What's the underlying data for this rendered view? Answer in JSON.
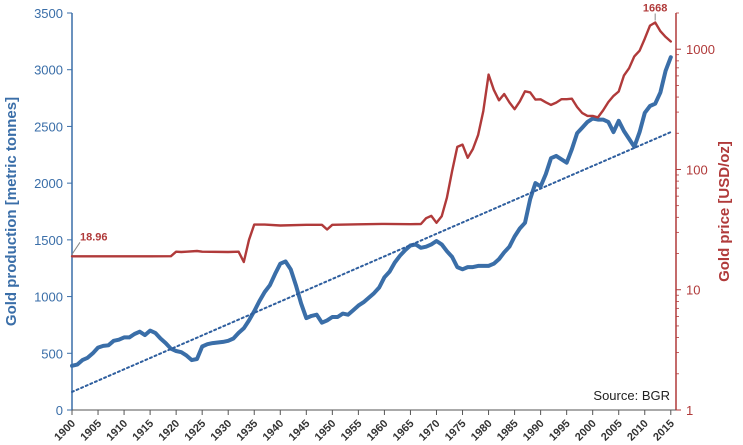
{
  "chart_data": {
    "type": "line",
    "source_label": "Source: BGR",
    "x_ticks": [
      1900,
      1905,
      1910,
      1915,
      1920,
      1925,
      1930,
      1935,
      1940,
      1945,
      1950,
      1955,
      1960,
      1965,
      1970,
      1975,
      1980,
      1985,
      1990,
      1995,
      2000,
      2005,
      2010,
      2015
    ],
    "xlim": [
      1900,
      2016
    ],
    "left_axis": {
      "label": "Gold production [metric tonnes]",
      "ticks": [
        0,
        500,
        1000,
        1500,
        2000,
        2500,
        3000,
        3500
      ],
      "ylim": [
        0,
        3500
      ],
      "color": "#3a6ea8"
    },
    "right_axis": {
      "label": "Gold price [USD/oz]",
      "scale": "log",
      "ticks": [
        1,
        10,
        100,
        1000
      ],
      "ylim": [
        1,
        2000
      ],
      "color": "#b03a3a"
    },
    "annotations": [
      {
        "text": "18.96",
        "x": 1900,
        "y": 18.96,
        "series": "price"
      },
      {
        "text": "1668",
        "x": 2012,
        "y": 1668,
        "series": "price"
      }
    ],
    "series": [
      {
        "axis": "left",
        "color": "#3a6ea8",
        "points": [
          [
            1900,
            390
          ],
          [
            1901,
            400
          ],
          [
            1902,
            440
          ],
          [
            1903,
            460
          ],
          [
            1904,
            500
          ],
          [
            1905,
            550
          ],
          [
            1906,
            565
          ],
          [
            1907,
            570
          ],
          [
            1908,
            610
          ],
          [
            1909,
            620
          ],
          [
            1910,
            640
          ],
          [
            1911,
            640
          ],
          [
            1912,
            670
          ],
          [
            1913,
            690
          ],
          [
            1914,
            660
          ],
          [
            1915,
            700
          ],
          [
            1916,
            680
          ],
          [
            1917,
            630
          ],
          [
            1918,
            590
          ],
          [
            1919,
            540
          ],
          [
            1920,
            520
          ],
          [
            1921,
            510
          ],
          [
            1922,
            480
          ],
          [
            1923,
            440
          ],
          [
            1924,
            450
          ],
          [
            1925,
            560
          ],
          [
            1926,
            580
          ],
          [
            1927,
            590
          ],
          [
            1928,
            595
          ],
          [
            1929,
            600
          ],
          [
            1930,
            610
          ],
          [
            1931,
            630
          ],
          [
            1932,
            680
          ],
          [
            1933,
            720
          ],
          [
            1934,
            790
          ],
          [
            1935,
            870
          ],
          [
            1936,
            960
          ],
          [
            1937,
            1040
          ],
          [
            1938,
            1100
          ],
          [
            1939,
            1200
          ],
          [
            1940,
            1290
          ],
          [
            1941,
            1310
          ],
          [
            1942,
            1240
          ],
          [
            1943,
            1100
          ],
          [
            1944,
            940
          ],
          [
            1945,
            810
          ],
          [
            1946,
            830
          ],
          [
            1947,
            840
          ],
          [
            1948,
            770
          ],
          [
            1949,
            790
          ],
          [
            1950,
            820
          ],
          [
            1951,
            820
          ],
          [
            1952,
            850
          ],
          [
            1953,
            840
          ],
          [
            1954,
            880
          ],
          [
            1955,
            920
          ],
          [
            1956,
            950
          ],
          [
            1957,
            990
          ],
          [
            1958,
            1030
          ],
          [
            1959,
            1080
          ],
          [
            1960,
            1170
          ],
          [
            1961,
            1220
          ],
          [
            1962,
            1300
          ],
          [
            1963,
            1360
          ],
          [
            1964,
            1410
          ],
          [
            1965,
            1450
          ],
          [
            1966,
            1460
          ],
          [
            1967,
            1430
          ],
          [
            1968,
            1440
          ],
          [
            1969,
            1460
          ],
          [
            1970,
            1490
          ],
          [
            1971,
            1460
          ],
          [
            1972,
            1400
          ],
          [
            1973,
            1350
          ],
          [
            1974,
            1260
          ],
          [
            1975,
            1240
          ],
          [
            1976,
            1260
          ],
          [
            1977,
            1260
          ],
          [
            1978,
            1270
          ],
          [
            1979,
            1270
          ],
          [
            1980,
            1270
          ],
          [
            1981,
            1290
          ],
          [
            1982,
            1330
          ],
          [
            1983,
            1390
          ],
          [
            1984,
            1440
          ],
          [
            1985,
            1530
          ],
          [
            1986,
            1600
          ],
          [
            1987,
            1650
          ],
          [
            1988,
            1860
          ],
          [
            1989,
            2000
          ],
          [
            1990,
            1970
          ],
          [
            1991,
            2080
          ],
          [
            1992,
            2220
          ],
          [
            1993,
            2240
          ],
          [
            1994,
            2210
          ],
          [
            1995,
            2180
          ],
          [
            1996,
            2300
          ],
          [
            1997,
            2440
          ],
          [
            1998,
            2490
          ],
          [
            1999,
            2540
          ],
          [
            2000,
            2570
          ],
          [
            2001,
            2560
          ],
          [
            2002,
            2560
          ],
          [
            2003,
            2540
          ],
          [
            2004,
            2450
          ],
          [
            2005,
            2550
          ],
          [
            2006,
            2460
          ],
          [
            2007,
            2390
          ],
          [
            2008,
            2320
          ],
          [
            2009,
            2450
          ],
          [
            2010,
            2620
          ],
          [
            2011,
            2680
          ],
          [
            2012,
            2700
          ],
          [
            2013,
            2800
          ],
          [
            2014,
            2990
          ],
          [
            2015,
            3110
          ]
        ]
      },
      {
        "axis": "right",
        "color": "#b03a3a",
        "points": [
          [
            1900,
            18.96
          ],
          [
            1902,
            18.96
          ],
          [
            1905,
            18.96
          ],
          [
            1910,
            18.96
          ],
          [
            1915,
            18.96
          ],
          [
            1919,
            19.0
          ],
          [
            1920,
            20.7
          ],
          [
            1921,
            20.6
          ],
          [
            1922,
            20.7
          ],
          [
            1924,
            21.0
          ],
          [
            1925,
            20.7
          ],
          [
            1930,
            20.6
          ],
          [
            1932,
            20.7
          ],
          [
            1933,
            17.0
          ],
          [
            1934,
            26.0
          ],
          [
            1935,
            34.8
          ],
          [
            1937,
            34.8
          ],
          [
            1940,
            34.2
          ],
          [
            1945,
            34.7
          ],
          [
            1947,
            34.7
          ],
          [
            1948,
            34.7
          ],
          [
            1949,
            31.7
          ],
          [
            1950,
            34.7
          ],
          [
            1955,
            35.0
          ],
          [
            1960,
            35.3
          ],
          [
            1965,
            35.1
          ],
          [
            1967,
            35.2
          ],
          [
            1968,
            39.3
          ],
          [
            1969,
            41.1
          ],
          [
            1970,
            36.0
          ],
          [
            1971,
            40.8
          ],
          [
            1972,
            58.2
          ],
          [
            1973,
            97.0
          ],
          [
            1974,
            154
          ],
          [
            1975,
            161
          ],
          [
            1976,
            125
          ],
          [
            1977,
            148
          ],
          [
            1978,
            193
          ],
          [
            1979,
            306
          ],
          [
            1980,
            615
          ],
          [
            1981,
            460
          ],
          [
            1982,
            376
          ],
          [
            1983,
            424
          ],
          [
            1984,
            361
          ],
          [
            1985,
            317
          ],
          [
            1986,
            368
          ],
          [
            1987,
            447
          ],
          [
            1988,
            437
          ],
          [
            1989,
            381
          ],
          [
            1990,
            383
          ],
          [
            1991,
            362
          ],
          [
            1992,
            344
          ],
          [
            1993,
            360
          ],
          [
            1994,
            384
          ],
          [
            1995,
            384
          ],
          [
            1996,
            388
          ],
          [
            1997,
            331
          ],
          [
            1998,
            294
          ],
          [
            1999,
            279
          ],
          [
            2000,
            279
          ],
          [
            2001,
            271
          ],
          [
            2002,
            310
          ],
          [
            2003,
            363
          ],
          [
            2004,
            409
          ],
          [
            2005,
            445
          ],
          [
            2006,
            603
          ],
          [
            2007,
            695
          ],
          [
            2008,
            872
          ],
          [
            2009,
            972
          ],
          [
            2010,
            1225
          ],
          [
            2011,
            1572
          ],
          [
            2012,
            1668
          ],
          [
            2013,
            1411
          ],
          [
            2014,
            1266
          ],
          [
            2015,
            1160
          ]
        ]
      },
      {
        "axis": "left",
        "style": "dotted",
        "color": "#2e5e9e",
        "points": [
          [
            1900,
            160
          ],
          [
            2015,
            2450
          ]
        ]
      }
    ]
  }
}
